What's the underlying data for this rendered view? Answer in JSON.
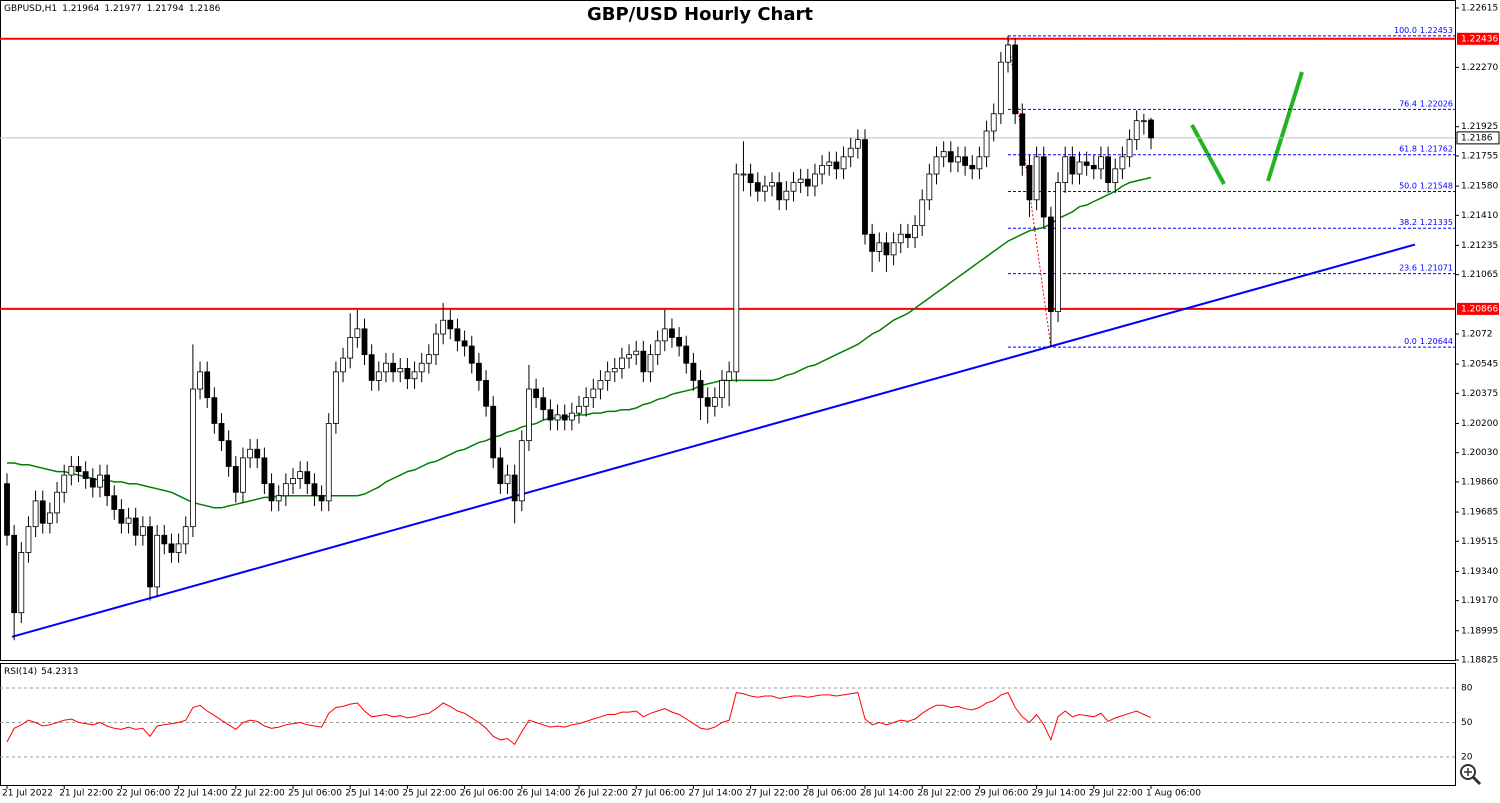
{
  "chart_data": {
    "type": "candlestick",
    "title": "GBP/USD Hourly Chart",
    "symbol": "GBPUSD,H1",
    "up_color": "#ffffff",
    "down_color": "#000000",
    "ylim": [
      1.18825,
      1.22615
    ],
    "yticks": [
      1.22615,
      {
        "value": 1.2227,
        "label": "1.22270"
      },
      1.21925,
      1.21755,
      {
        "value": 1.2158,
        "label": "1.21580"
      },
      {
        "value": 1.2141,
        "label": "1.21410"
      },
      1.21235,
      1.21065,
      1.2072,
      1.20545,
      1.20375,
      {
        "value": 1.202,
        "label": "1.20200"
      },
      {
        "value": 1.2003,
        "label": "1.20030"
      },
      {
        "value": 1.1986,
        "label": "1.19860"
      },
      1.19685,
      1.19515,
      {
        "value": 1.1934,
        "label": "1.19340"
      },
      {
        "value": 1.1917,
        "label": "1.19170"
      },
      1.18995,
      1.18825
    ],
    "x_labels": [
      "21 Jul 2022",
      "21 Jul 22:00",
      "22 Jul 06:00",
      "22 Jul 14:00",
      "22 Jul 22:00",
      "25 Jul 06:00",
      "25 Jul 14:00",
      "25 Jul 22:00",
      "26 Jul 06:00",
      "26 Jul 14:00",
      "26 Jul 22:00",
      "27 Jul 06:00",
      "27 Jul 14:00",
      "27 Jul 22:00",
      "28 Jul 06:00",
      "28 Jul 14:00",
      "28 Jul 22:00",
      "29 Jul 06:00",
      "29 Jul 14:00",
      "29 Jul 22:00",
      "1 Aug 06:00"
    ],
    "candles": [
      [
        1.1985,
        1.1991,
        1.1949,
        1.1955
      ],
      [
        1.1955,
        1.1961,
        1.1894,
        1.191
      ],
      [
        1.191,
        1.1951,
        1.1904,
        1.1945
      ],
      [
        1.1945,
        1.1966,
        1.1939,
        1.196
      ],
      [
        1.196,
        1.1981,
        1.1954,
        1.1975
      ],
      [
        1.1975,
        1.1981,
        1.1956,
        1.1962
      ],
      [
        1.1962,
        1.1974,
        1.1956,
        1.1968
      ],
      [
        1.1968,
        1.1986,
        1.1962,
        1.198
      ],
      [
        1.198,
        1.1996,
        1.1974,
        1.199
      ],
      [
        1.199,
        1.2001,
        1.1984,
        1.1995
      ],
      [
        1.1995,
        1.2001,
        1.1986,
        1.1992
      ],
      [
        1.1992,
        1.1998,
        1.1982,
        1.1988
      ],
      [
        1.1988,
        1.1994,
        1.1977,
        1.1983
      ],
      [
        1.1983,
        1.1996,
        1.1977,
        1.199
      ],
      [
        1.199,
        1.1996,
        1.1972,
        1.1978
      ],
      [
        1.1978,
        1.1984,
        1.1964,
        1.197
      ],
      [
        1.197,
        1.1976,
        1.1956,
        1.1962
      ],
      [
        1.1962,
        1.1971,
        1.1956,
        1.1965
      ],
      [
        1.1965,
        1.1971,
        1.1949,
        1.1955
      ],
      [
        1.1955,
        1.1966,
        1.1949,
        1.196
      ],
      [
        1.196,
        1.1966,
        1.1917,
        1.1925
      ],
      [
        1.1925,
        1.1961,
        1.1919,
        1.1955
      ],
      [
        1.1955,
        1.1961,
        1.1944,
        1.195
      ],
      [
        1.195,
        1.1956,
        1.1939,
        1.1945
      ],
      [
        1.1945,
        1.1956,
        1.1939,
        1.195
      ],
      [
        1.195,
        1.1966,
        1.1944,
        1.196
      ],
      [
        1.196,
        1.2066,
        1.1954,
        1.204
      ],
      [
        1.204,
        1.2056,
        1.2034,
        1.205
      ],
      [
        1.205,
        1.2056,
        1.2029,
        1.2035
      ],
      [
        1.2035,
        1.2041,
        1.2014,
        1.202
      ],
      [
        1.202,
        1.2026,
        1.2004,
        1.201
      ],
      [
        1.201,
        1.2016,
        1.1989,
        1.1995
      ],
      [
        1.1995,
        1.2001,
        1.1974,
        1.198
      ],
      [
        1.198,
        1.2006,
        1.1974,
        1.2
      ],
      [
        1.2,
        1.2011,
        1.1994,
        1.2005
      ],
      [
        1.2005,
        1.2011,
        1.1994,
        1.2
      ],
      [
        1.2,
        1.2006,
        1.1979,
        1.1985
      ],
      [
        1.1985,
        1.1991,
        1.1969,
        1.1975
      ],
      [
        1.1975,
        1.1984,
        1.1969,
        1.1978
      ],
      [
        1.1978,
        1.1991,
        1.1972,
        1.1985
      ],
      [
        1.1985,
        1.1994,
        1.1979,
        1.1988
      ],
      [
        1.1988,
        1.1998,
        1.1982,
        1.1992
      ],
      [
        1.1992,
        1.1998,
        1.1979,
        1.1985
      ],
      [
        1.1985,
        1.1991,
        1.1972,
        1.1978
      ],
      [
        1.1978,
        1.1984,
        1.1969,
        1.1975
      ],
      [
        1.1975,
        1.2026,
        1.1969,
        1.202
      ],
      [
        1.202,
        1.2056,
        1.2014,
        1.205
      ],
      [
        1.205,
        1.2064,
        1.2044,
        1.2058
      ],
      [
        1.2058,
        1.2084,
        1.2052,
        1.207
      ],
      [
        1.207,
        1.2086,
        1.2064,
        1.2075
      ],
      [
        1.2075,
        1.2081,
        1.2054,
        1.206
      ],
      [
        1.206,
        1.2066,
        1.2039,
        1.2045
      ],
      [
        1.2045,
        1.2056,
        1.2039,
        1.205
      ],
      [
        1.205,
        1.2061,
        1.2044,
        1.2055
      ],
      [
        1.2055,
        1.2061,
        1.2044,
        1.205
      ],
      [
        1.205,
        1.2058,
        1.2044,
        1.2052
      ],
      [
        1.2052,
        1.2058,
        1.204,
        1.2046
      ],
      [
        1.2046,
        1.2056,
        1.204,
        1.205
      ],
      [
        1.205,
        1.2061,
        1.2044,
        1.2055
      ],
      [
        1.2055,
        1.2066,
        1.2049,
        1.206
      ],
      [
        1.206,
        1.2078,
        1.2054,
        1.2072
      ],
      [
        1.2072,
        1.209,
        1.2066,
        1.208
      ],
      [
        1.208,
        1.2086,
        1.2069,
        1.2075
      ],
      [
        1.2075,
        1.2081,
        1.2062,
        1.2068
      ],
      [
        1.2068,
        1.2074,
        1.2059,
        1.2065
      ],
      [
        1.2065,
        1.2071,
        1.2049,
        1.2055
      ],
      [
        1.2055,
        1.2061,
        1.2039,
        1.2045
      ],
      [
        1.2045,
        1.2051,
        1.2024,
        1.203
      ],
      [
        1.203,
        1.2036,
        1.1994,
        1.2
      ],
      [
        1.2,
        1.2006,
        1.1979,
        1.1985
      ],
      [
        1.1985,
        1.1996,
        1.1979,
        1.199
      ],
      [
        1.199,
        1.1996,
        1.1962,
        1.1975
      ],
      [
        1.1975,
        1.2016,
        1.1969,
        1.201
      ],
      [
        1.201,
        1.2054,
        1.2004,
        1.204
      ],
      [
        1.204,
        1.2046,
        1.2029,
        1.2035
      ],
      [
        1.2035,
        1.2041,
        1.2022,
        1.2028
      ],
      [
        1.2028,
        1.2034,
        1.2016,
        1.2022
      ],
      [
        1.2022,
        1.2031,
        1.2016,
        1.2025
      ],
      [
        1.2025,
        1.2031,
        1.2016,
        1.2022
      ],
      [
        1.2022,
        1.2032,
        1.2016,
        1.2026
      ],
      [
        1.2026,
        1.2036,
        1.202,
        1.203
      ],
      [
        1.203,
        1.2041,
        1.2024,
        1.2035
      ],
      [
        1.2035,
        1.2046,
        1.2029,
        1.204
      ],
      [
        1.204,
        1.2051,
        1.2034,
        1.2045
      ],
      [
        1.2045,
        1.2056,
        1.2039,
        1.205
      ],
      [
        1.205,
        1.2058,
        1.2044,
        1.2052
      ],
      [
        1.2052,
        1.2064,
        1.2046,
        1.2058
      ],
      [
        1.2058,
        1.2066,
        1.2052,
        1.206
      ],
      [
        1.206,
        1.2068,
        1.2054,
        1.2062
      ],
      [
        1.2062,
        1.2068,
        1.2044,
        1.205
      ],
      [
        1.205,
        1.2066,
        1.2044,
        1.206
      ],
      [
        1.206,
        1.2074,
        1.2054,
        1.2068
      ],
      [
        1.2068,
        1.2086,
        1.2062,
        1.2075
      ],
      [
        1.2075,
        1.2081,
        1.2064,
        1.207
      ],
      [
        1.207,
        1.2076,
        1.2059,
        1.2065
      ],
      [
        1.2065,
        1.2071,
        1.2049,
        1.2055
      ],
      [
        1.2055,
        1.2061,
        1.2039,
        1.2045
      ],
      [
        1.2045,
        1.2051,
        1.2022,
        1.2035
      ],
      [
        1.2035,
        1.2041,
        1.202,
        1.203
      ],
      [
        1.203,
        1.2041,
        1.2024,
        1.2035
      ],
      [
        1.2035,
        1.2051,
        1.2029,
        1.2045
      ],
      [
        1.2045,
        1.2056,
        1.203,
        1.205
      ],
      [
        1.205,
        1.2171,
        1.2044,
        1.2165
      ],
      [
        1.2165,
        1.2184,
        1.2155,
        1.2165
      ],
      [
        1.2165,
        1.2171,
        1.2152,
        1.216
      ],
      [
        1.216,
        1.2166,
        1.2149,
        1.2155
      ],
      [
        1.2155,
        1.2164,
        1.2149,
        1.2158
      ],
      [
        1.2158,
        1.2166,
        1.2152,
        1.216
      ],
      [
        1.216,
        1.2166,
        1.2144,
        1.215
      ],
      [
        1.215,
        1.2161,
        1.2144,
        1.2155
      ],
      [
        1.2155,
        1.2166,
        1.2149,
        1.216
      ],
      [
        1.216,
        1.2168,
        1.2154,
        1.2162
      ],
      [
        1.2162,
        1.2168,
        1.2152,
        1.2158
      ],
      [
        1.2158,
        1.2171,
        1.2152,
        1.2165
      ],
      [
        1.2165,
        1.2176,
        1.2159,
        1.217
      ],
      [
        1.217,
        1.2178,
        1.2164,
        1.2172
      ],
      [
        1.2172,
        1.2178,
        1.2162,
        1.2168
      ],
      [
        1.2168,
        1.2181,
        1.2162,
        1.2175
      ],
      [
        1.2175,
        1.2186,
        1.2169,
        1.218
      ],
      [
        1.218,
        1.2191,
        1.2174,
        1.2185
      ],
      [
        1.2185,
        1.2191,
        1.2124,
        1.213
      ],
      [
        1.213,
        1.2136,
        1.2108,
        1.212
      ],
      [
        1.212,
        1.2131,
        1.2114,
        1.2125
      ],
      [
        1.2125,
        1.2131,
        1.2108,
        1.2118
      ],
      [
        1.2118,
        1.2131,
        1.2112,
        1.2125
      ],
      [
        1.2125,
        1.2136,
        1.2119,
        1.213
      ],
      [
        1.213,
        1.2136,
        1.2122,
        1.2128
      ],
      [
        1.2128,
        1.2141,
        1.2122,
        1.2135
      ],
      [
        1.2135,
        1.2156,
        1.2129,
        1.215
      ],
      [
        1.215,
        1.2171,
        1.2144,
        1.2165
      ],
      [
        1.2165,
        1.2181,
        1.2159,
        1.2175
      ],
      [
        1.2175,
        1.2184,
        1.2169,
        1.2178
      ],
      [
        1.2178,
        1.2184,
        1.2166,
        1.2172
      ],
      [
        1.2172,
        1.2181,
        1.2166,
        1.2175
      ],
      [
        1.2175,
        1.2181,
        1.2164,
        1.217
      ],
      [
        1.217,
        1.2176,
        1.2162,
        1.2168
      ],
      [
        1.2168,
        1.2181,
        1.2162,
        1.2175
      ],
      [
        1.2175,
        1.2196,
        1.2169,
        1.219
      ],
      [
        1.219,
        1.2206,
        1.2184,
        1.22
      ],
      [
        1.22,
        1.2236,
        1.2194,
        1.223
      ],
      [
        1.223,
        1.22453,
        1.2224,
        1.224
      ],
      [
        1.224,
        1.2244,
        1.2194,
        1.22
      ],
      [
        1.22,
        1.2206,
        1.2164,
        1.217
      ],
      [
        1.217,
        1.2176,
        1.214,
        1.215
      ],
      [
        1.215,
        1.2181,
        1.2144,
        1.2175
      ],
      [
        1.2175,
        1.2181,
        1.2134,
        1.214
      ],
      [
        1.214,
        1.2146,
        1.20644,
        1.2085
      ],
      [
        1.2085,
        1.2166,
        1.2079,
        1.216
      ],
      [
        1.216,
        1.2181,
        1.2154,
        1.2175
      ],
      [
        1.2175,
        1.2181,
        1.2159,
        1.2165
      ],
      [
        1.2165,
        1.2178,
        1.2159,
        1.2172
      ],
      [
        1.2172,
        1.2178,
        1.2164,
        1.217
      ],
      [
        1.217,
        1.2176,
        1.2162,
        1.2168
      ],
      [
        1.2168,
        1.2181,
        1.2162,
        1.2175
      ],
      [
        1.2175,
        1.2181,
        1.2154,
        1.216
      ],
      [
        1.216,
        1.2174,
        1.2154,
        1.2168
      ],
      [
        1.2168,
        1.2181,
        1.2162,
        1.2175
      ],
      [
        1.2175,
        1.2191,
        1.2169,
        1.2185
      ],
      [
        1.2185,
        1.2202,
        1.2179,
        1.2196
      ],
      [
        1.2196,
        1.22,
        1.2188,
        1.2196
      ],
      [
        1.21964,
        1.21977,
        1.21794,
        1.2186
      ]
    ],
    "ma": {
      "color": "#008000",
      "values": [
        1.1997,
        1.1997,
        1.1996,
        1.1996,
        1.1995,
        1.1994,
        1.1993,
        1.1992,
        1.1992,
        1.1991,
        1.199,
        1.1989,
        1.1988,
        1.1987,
        1.1987,
        1.1986,
        1.1986,
        1.1985,
        1.1985,
        1.1984,
        1.1983,
        1.1982,
        1.1981,
        1.198,
        1.1978,
        1.1976,
        1.1974,
        1.1973,
        1.1972,
        1.1971,
        1.1971,
        1.1972,
        1.1973,
        1.1974,
        1.1975,
        1.1976,
        1.1977,
        1.1977,
        1.1978,
        1.1978,
        1.1978,
        1.1978,
        1.1978,
        1.1978,
        1.1978,
        1.1978,
        1.1978,
        1.1978,
        1.1978,
        1.1978,
        1.1979,
        1.1981,
        1.1983,
        1.1986,
        1.1988,
        1.199,
        1.1992,
        1.1993,
        1.1995,
        1.1997,
        1.1998,
        1.2,
        1.2002,
        1.2004,
        1.2005,
        1.2007,
        1.2009,
        1.201,
        1.2012,
        1.2013,
        1.2015,
        1.2016,
        1.2018,
        1.2019,
        1.202,
        1.2022,
        1.2023,
        1.2023,
        1.2024,
        1.2024,
        1.2025,
        1.2025,
        1.2026,
        1.2026,
        1.2027,
        1.2027,
        1.2028,
        1.2028,
        1.2029,
        1.2031,
        1.2032,
        1.2034,
        1.2035,
        1.2037,
        1.2038,
        1.2039,
        1.204,
        1.2042,
        1.2043,
        1.2044,
        1.2045,
        1.2045,
        1.2045,
        1.2045,
        1.2045,
        1.2045,
        1.2045,
        1.2045,
        1.2046,
        1.2048,
        1.2049,
        1.2051,
        1.2053,
        1.2054,
        1.2056,
        1.2058,
        1.206,
        1.2062,
        1.2064,
        1.2066,
        1.2069,
        1.2072,
        1.2074,
        1.2077,
        1.208,
        1.2082,
        1.2084,
        1.2087,
        1.209,
        1.2093,
        1.2096,
        1.2099,
        1.2102,
        1.2105,
        1.2108,
        1.2111,
        1.2114,
        1.2117,
        1.212,
        1.2123,
        1.2126,
        1.2128,
        1.213,
        1.2132,
        1.2133,
        1.2134,
        1.2136,
        1.2139,
        1.2141,
        1.2143,
        1.2146,
        1.2147,
        1.2149,
        1.2151,
        1.2153,
        1.2155,
        1.2158,
        1.216,
        1.2161,
        1.2162,
        1.2163
      ]
    },
    "levels": [
      {
        "value": 1.22436,
        "color": "#ff0000"
      },
      {
        "value": 1.20866,
        "color": "#ff0000"
      }
    ],
    "fib": {
      "color": "#0000ff",
      "levels": [
        {
          "ratio": "100.0",
          "price": 1.22453
        },
        {
          "ratio": "76.4",
          "price": 1.22026
        },
        {
          "ratio": "61.8",
          "price": 1.21762
        },
        {
          "ratio": "50.0",
          "price": 1.21548
        },
        {
          "ratio": "38.2",
          "price": 1.21335
        },
        {
          "ratio": "23.6",
          "price": 1.21071
        },
        {
          "ratio": "0.0",
          "price": 1.20644
        }
      ]
    },
    "trendline": {
      "color": "#0000ff",
      "values": [
        1.1896,
        1.2124
      ]
    },
    "rsi": {
      "name": "RSI(14)",
      "color": "#ff0000",
      "ylim": [
        0,
        100
      ],
      "yticks": [
        20,
        50,
        80
      ],
      "values": [
        33,
        45,
        48,
        52,
        50,
        47,
        48,
        50,
        52,
        53,
        50,
        49,
        48,
        50,
        47,
        45,
        44,
        46,
        44,
        45,
        38,
        47,
        48,
        49,
        50,
        52,
        63,
        65,
        60,
        56,
        52,
        48,
        44,
        50,
        52,
        51,
        47,
        45,
        46,
        48,
        49,
        50,
        48,
        47,
        46,
        58,
        63,
        64,
        66,
        67,
        60,
        55,
        56,
        57,
        55,
        56,
        54,
        55,
        57,
        58,
        62,
        67,
        64,
        60,
        58,
        54,
        50,
        45,
        38,
        35,
        36,
        31,
        42,
        52,
        50,
        48,
        46,
        47,
        46,
        48,
        49,
        51,
        53,
        55,
        57,
        57,
        59,
        59,
        60,
        55,
        58,
        60,
        62,
        59,
        57,
        53,
        49,
        45,
        44,
        46,
        50,
        52,
        76,
        75,
        73,
        72,
        73,
        73,
        71,
        72,
        73,
        73,
        72,
        73,
        74,
        74,
        73,
        74,
        75,
        76,
        53,
        48,
        50,
        48,
        50,
        52,
        51,
        53,
        58,
        62,
        65,
        65,
        63,
        64,
        62,
        61,
        63,
        67,
        69,
        74,
        76,
        63,
        55,
        50,
        57,
        48,
        35,
        55,
        60,
        55,
        57,
        56,
        55,
        58,
        51,
        54,
        56,
        58,
        60,
        57,
        54.2313
      ]
    }
  }
}
